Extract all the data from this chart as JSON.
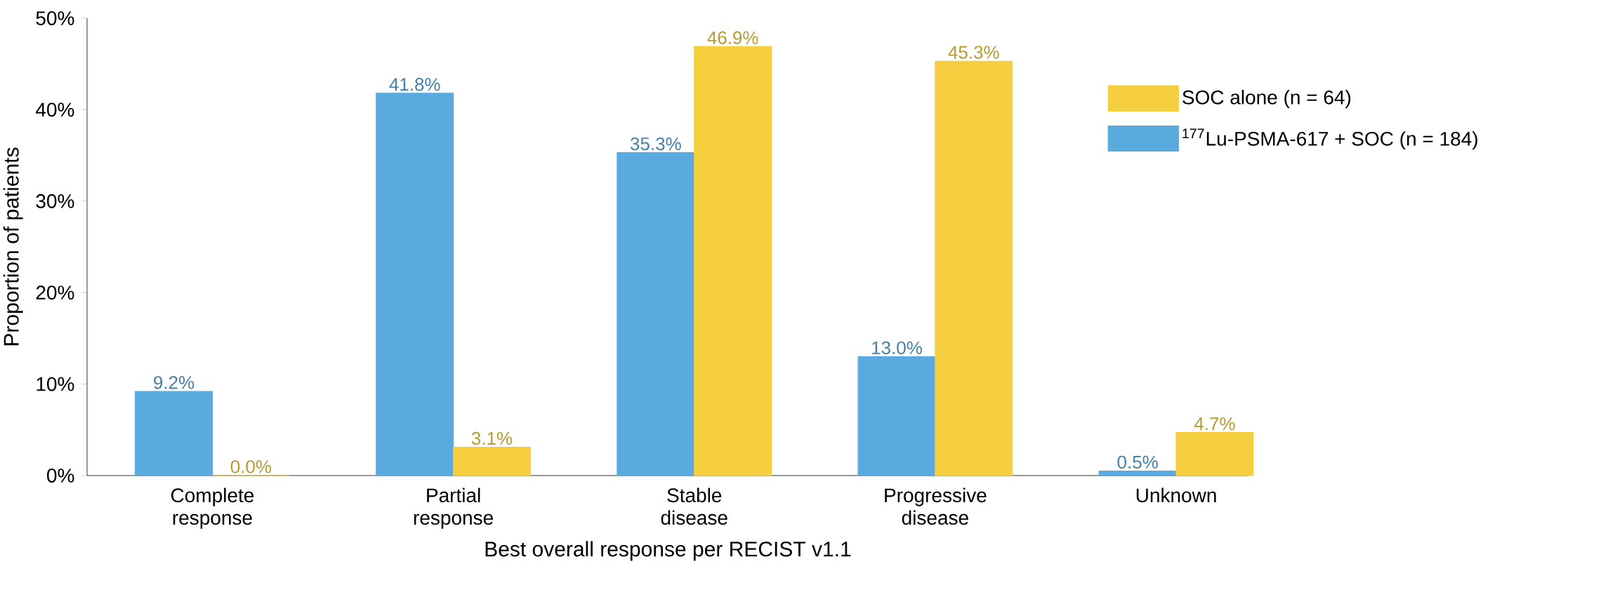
{
  "chart_data": {
    "type": "bar",
    "xlabel": "Best overall response per RECIST v1.1",
    "ylabel": "Proportion of patients",
    "categories": [
      "Complete response",
      "Partial response",
      "Stable disease",
      "Progressive disease",
      "Unknown"
    ],
    "series": [
      {
        "name": "$^{177}$Lu-PSMA-617 + SOC (n = 184)",
        "color": "#5aaadf",
        "values": [
          9.2,
          41.8,
          35.3,
          13.0,
          0.5
        ],
        "value_labels": [
          "9.2%",
          "41.8%",
          "35.3%",
          "13.0%",
          "0.5%"
        ]
      },
      {
        "name": "SOC alone (n = 64)",
        "color": "#f5cf3f",
        "values": [
          0.0,
          3.1,
          46.9,
          45.3,
          4.7
        ],
        "value_labels": [
          "0.0%",
          "3.1%",
          "46.9%",
          "45.3%",
          "4.7%"
        ]
      }
    ],
    "ylim": [
      0,
      50
    ],
    "yticks": [
      {
        "value": 0,
        "label": "0%"
      },
      {
        "value": 10,
        "label": "10%"
      },
      {
        "value": 20,
        "label": "20%"
      },
      {
        "value": 30,
        "label": "30%"
      },
      {
        "value": 40,
        "label": "40%"
      },
      {
        "value": 50,
        "label": "50%"
      }
    ],
    "grid": false,
    "legend": "top right"
  }
}
